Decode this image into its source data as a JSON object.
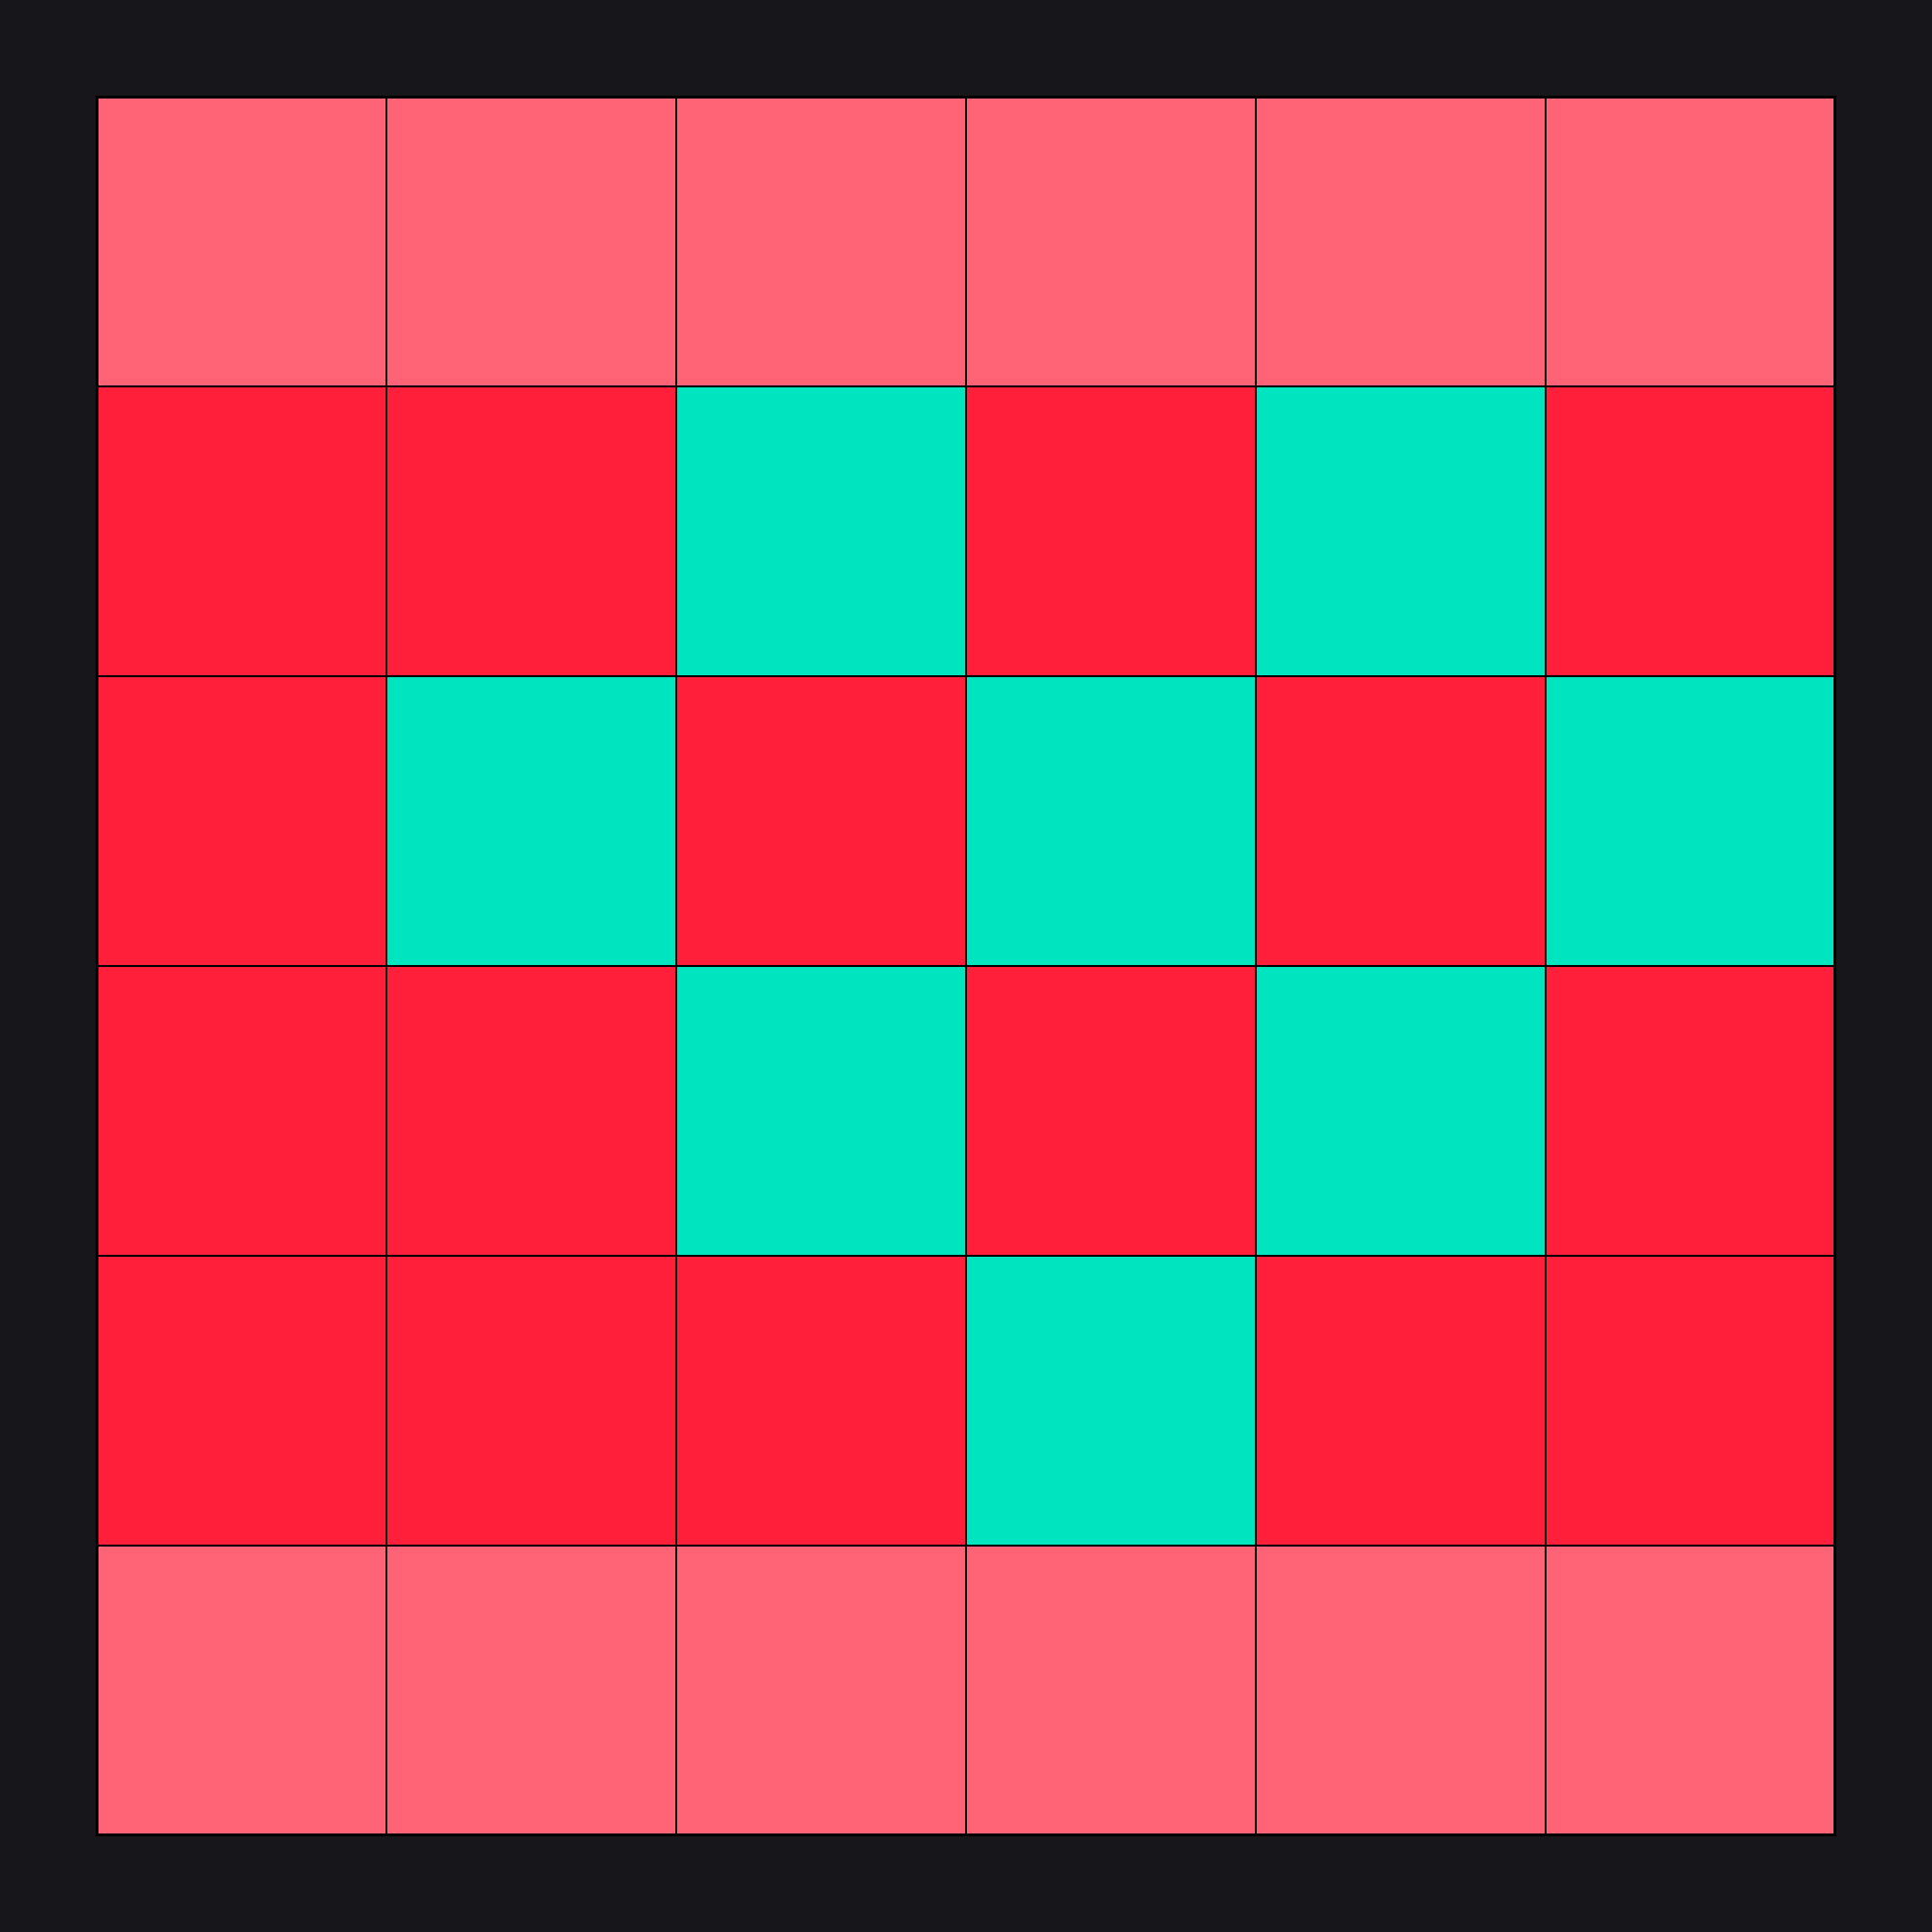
{
  "colors": {
    "background": "#17161a",
    "L": "#ff6376",
    "R": "#ff1f3a",
    "T": "#00e5c0",
    "gridline": "#000000"
  },
  "board": {
    "rows": 6,
    "cols": 6,
    "cells": [
      [
        "L",
        "L",
        "L",
        "L",
        "L",
        "L"
      ],
      [
        "R",
        "R",
        "T",
        "R",
        "T",
        "R"
      ],
      [
        "R",
        "T",
        "R",
        "T",
        "R",
        "T"
      ],
      [
        "R",
        "R",
        "T",
        "R",
        "T",
        "R"
      ],
      [
        "R",
        "R",
        "R",
        "T",
        "R",
        "R"
      ],
      [
        "L",
        "L",
        "L",
        "L",
        "L",
        "L"
      ]
    ]
  }
}
